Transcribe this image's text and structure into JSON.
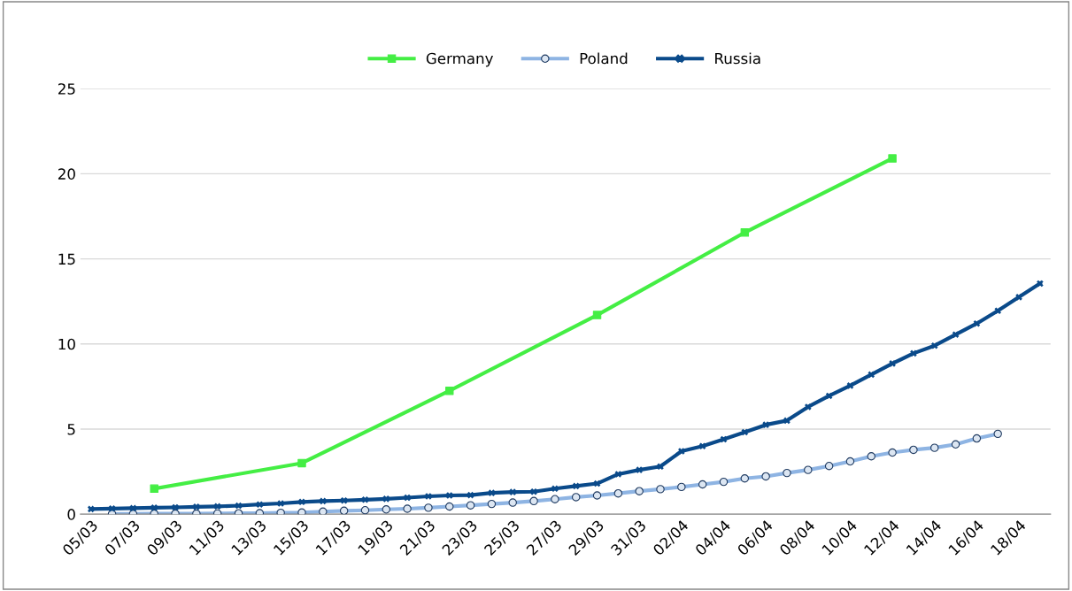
{
  "chart_data": {
    "type": "line",
    "categories": [
      "05/03",
      null,
      "07/03",
      null,
      "09/03",
      null,
      "11/03",
      null,
      "13/03",
      null,
      "15/03",
      null,
      "17/03",
      null,
      "19/03",
      null,
      "21/03",
      null,
      "23/03",
      null,
      "25/03",
      null,
      "27/03",
      null,
      "29/03",
      null,
      "31/03",
      null,
      "02/04",
      null,
      "04/04",
      null,
      "06/04",
      null,
      "08/04",
      null,
      "10/04",
      null,
      "12/04",
      null,
      "14/04",
      null,
      "16/04",
      null,
      "18/04",
      null
    ],
    "series": [
      {
        "name": "Germany",
        "color": "#44ee44",
        "marker": "square",
        "values": [
          null,
          null,
          null,
          1.5,
          null,
          null,
          null,
          null,
          null,
          null,
          3.0,
          null,
          null,
          null,
          null,
          null,
          null,
          7.25,
          null,
          null,
          null,
          null,
          null,
          null,
          11.7,
          null,
          null,
          null,
          null,
          null,
          null,
          16.55,
          null,
          null,
          null,
          null,
          null,
          null,
          20.9,
          null,
          null,
          null,
          null,
          null,
          null,
          null
        ]
      },
      {
        "name": "Poland",
        "color": "#8eb4e3",
        "marker": "circle",
        "values": [
          null,
          0.02,
          0.02,
          0.03,
          0.03,
          0.03,
          0.04,
          0.05,
          0.06,
          0.08,
          0.1,
          0.15,
          0.2,
          0.23,
          0.28,
          0.32,
          0.38,
          0.45,
          0.52,
          0.6,
          0.68,
          0.77,
          0.88,
          1.0,
          1.1,
          1.22,
          1.35,
          1.47,
          1.6,
          1.75,
          1.9,
          2.1,
          2.22,
          2.42,
          2.6,
          2.83,
          3.1,
          3.4,
          3.62,
          3.78,
          3.9,
          4.1,
          4.45,
          4.72,
          null,
          null
        ]
      },
      {
        "name": "Russia",
        "color": "#0a4a8a",
        "marker": "cross",
        "values": [
          0.3,
          0.33,
          0.35,
          0.38,
          0.4,
          0.43,
          0.46,
          0.5,
          0.57,
          0.63,
          0.72,
          0.77,
          0.8,
          0.85,
          0.9,
          0.97,
          1.05,
          1.1,
          1.12,
          1.25,
          1.3,
          1.32,
          1.5,
          1.65,
          1.8,
          2.35,
          2.6,
          2.8,
          3.7,
          4.0,
          4.4,
          4.82,
          5.25,
          5.5,
          6.3,
          6.95,
          7.55,
          8.2,
          8.85,
          9.45,
          9.9,
          10.55,
          11.2,
          11.95,
          12.75,
          13.55
        ]
      }
    ],
    "ylim": [
      0,
      25
    ],
    "yticks": [
      0,
      5,
      10,
      15,
      20,
      25
    ],
    "grid": "y",
    "legend": "top"
  }
}
